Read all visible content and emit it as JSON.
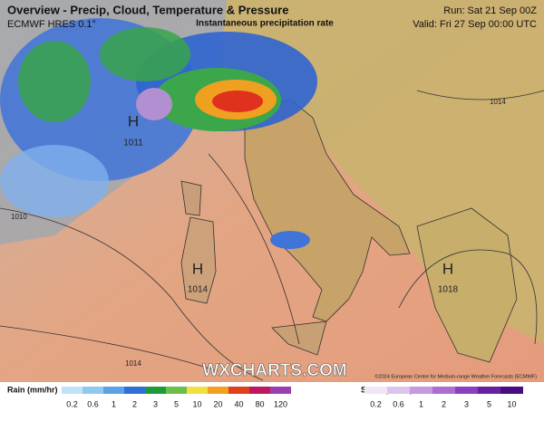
{
  "header": {
    "title": "Overview - Precip, Cloud, Temperature & Pressure",
    "model": "ECMWF HRES 0.1°",
    "product": "Instantaneous precipitation rate",
    "run": "Run: Sat 21 Sep 00Z",
    "valid": "Valid: Fri 27 Sep 00:00 UTC"
  },
  "pressure_centers": [
    {
      "symbol": "H",
      "value": "1011"
    },
    {
      "symbol": "H",
      "value": "1014"
    },
    {
      "symbol": "H",
      "value": "1018"
    }
  ],
  "isobar_labels": [
    "1014",
    "1010",
    "1014"
  ],
  "watermark": "WXCHARTS.COM",
  "copyright": "©2024 European Centre for Medium-range Weather Forecasts (ECMWF)",
  "legend": {
    "rain": {
      "title": "Rain (mm/hr)",
      "labels": [
        "0.2",
        "0.6",
        "1",
        "2",
        "3",
        "5",
        "10",
        "20",
        "40",
        "80",
        "120"
      ]
    },
    "snow": {
      "title": "Snow (cm/hr)",
      "labels": [
        "0.2",
        "0.6",
        "1",
        "2",
        "3",
        "5",
        "10"
      ]
    }
  }
}
